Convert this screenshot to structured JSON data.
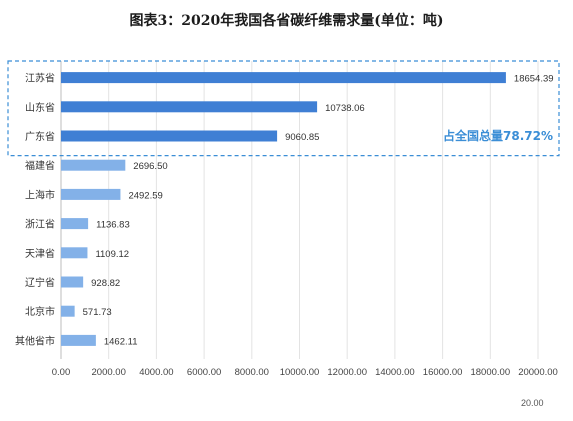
{
  "chart_data": {
    "type": "bar",
    "orientation": "horizontal",
    "title": "图表3：2020年我国各省碳纤维需求量(单位：吨)",
    "categories": [
      "江苏省",
      "山东省",
      "广东省",
      "福建省",
      "上海市",
      "浙江省",
      "天津省",
      "辽宁省",
      "北京市",
      "其他省市"
    ],
    "values": [
      18654.39,
      10738.06,
      9060.85,
      2696.5,
      2492.59,
      1136.83,
      1109.12,
      928.82,
      571.73,
      1462.11
    ],
    "value_labels": [
      "18654.39",
      "10738.06",
      "9060.85",
      "2696.50",
      "2492.59",
      "1136.83",
      "1109.12",
      "928.82",
      "571.73",
      "1462.11"
    ],
    "xlim": [
      0,
      20000
    ],
    "x_ticks": [
      0,
      2000,
      4000,
      6000,
      8000,
      10000,
      12000,
      14000,
      16000,
      18000,
      20000
    ],
    "x_tick_labels": [
      "0.00",
      "2000.00",
      "4000.00",
      "6000.00",
      "8000.00",
      "10000.00",
      "12000.00",
      "14000.00",
      "16000.00",
      "18000.00",
      "20000.00"
    ],
    "grid": true,
    "colors": {
      "top3": "#3f7fd4",
      "others": "#83b1e8",
      "annotation": "#3b8ed6"
    },
    "highlight_count": 3,
    "annotation": "占全国总量78.72%",
    "footnote": "20.00"
  }
}
